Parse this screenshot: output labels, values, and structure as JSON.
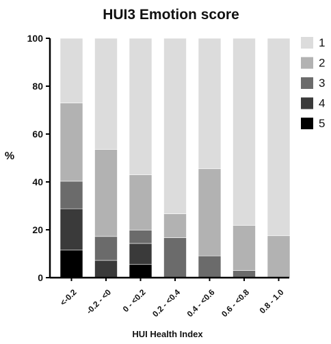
{
  "chart_data": {
    "type": "bar",
    "stacked": true,
    "title": "HUI3 Emotion score",
    "xlabel": "HUI Health Index",
    "ylabel": "%",
    "ylim": [
      0,
      100
    ],
    "yticks": [
      0,
      20,
      40,
      60,
      80,
      100
    ],
    "grid": false,
    "legend_position": "right",
    "categories": [
      "<-0.2",
      "-0.2 - <0",
      "0 - <0.2",
      "0.2 - <0.4",
      "0.4 - <0.6",
      "0.6 - <0.8",
      "0.8 - 1.0"
    ],
    "series": [
      {
        "name": "5",
        "color": "#000000",
        "values": [
          11.5,
          0,
          5.5,
          0,
          0,
          0,
          0
        ]
      },
      {
        "name": "4",
        "color": "#3a3a3a",
        "values": [
          17.3,
          7.2,
          8.8,
          0,
          0,
          0,
          0
        ]
      },
      {
        "name": "3",
        "color": "#6b6b6b",
        "values": [
          11.5,
          10.0,
          5.6,
          16.7,
          9.1,
          3.0,
          0
        ]
      },
      {
        "name": "2",
        "color": "#b2b2b2",
        "values": [
          32.7,
          36.4,
          23.1,
          10.0,
          36.4,
          18.8,
          17.5
        ]
      },
      {
        "name": "1",
        "color": "#dcdcdc",
        "values": [
          27.0,
          46.4,
          57.0,
          73.3,
          54.5,
          78.2,
          82.5
        ]
      }
    ]
  }
}
